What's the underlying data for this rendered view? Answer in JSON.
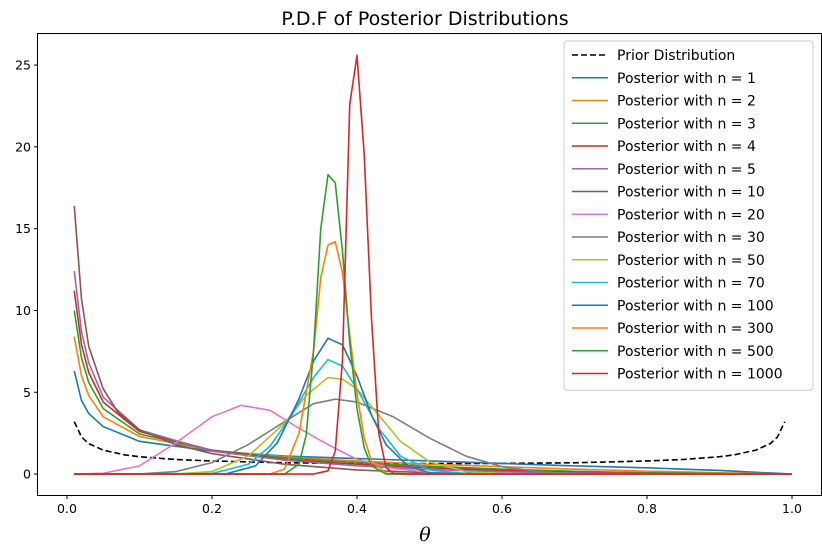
{
  "chart_data": {
    "type": "line",
    "title": "P.D.F of Posterior Distributions",
    "xlabel": "θ",
    "ylabel": "",
    "xlim": [
      -0.04,
      1.04
    ],
    "ylim": [
      -1.28,
      26.9
    ],
    "x_ticks": [
      0.0,
      0.2,
      0.4,
      0.6,
      0.8,
      1.0
    ],
    "x_tick_labels": [
      "0.0",
      "0.2",
      "0.4",
      "0.6",
      "0.8",
      "1.0"
    ],
    "y_ticks": [
      0,
      5,
      10,
      15,
      20,
      25
    ],
    "y_tick_labels": [
      "0",
      "5",
      "10",
      "15",
      "20",
      "25"
    ],
    "grid": false,
    "legend_position": "top-right",
    "series": [
      {
        "name": "Prior Distribution",
        "color": "#000000",
        "dash": true,
        "x_range": [
          0.01,
          0.99
        ],
        "points": [
          [
            0.01,
            3.2
          ],
          [
            0.02,
            2.27
          ],
          [
            0.03,
            1.86
          ],
          [
            0.05,
            1.46
          ],
          [
            0.08,
            1.17
          ],
          [
            0.1,
            1.06
          ],
          [
            0.15,
            0.89
          ],
          [
            0.2,
            0.8
          ],
          [
            0.3,
            0.69
          ],
          [
            0.4,
            0.65
          ],
          [
            0.5,
            0.64
          ],
          [
            0.6,
            0.65
          ],
          [
            0.7,
            0.69
          ],
          [
            0.8,
            0.8
          ],
          [
            0.85,
            0.89
          ],
          [
            0.9,
            1.06
          ],
          [
            0.92,
            1.17
          ],
          [
            0.95,
            1.46
          ],
          [
            0.97,
            1.86
          ],
          [
            0.98,
            2.27
          ],
          [
            0.99,
            3.2
          ]
        ]
      },
      {
        "name": "Posterior with n = 1",
        "color": "#1f77b4",
        "x_range": [
          0.01,
          1.0
        ],
        "points": [
          [
            0.01,
            6.3
          ],
          [
            0.02,
            4.5
          ],
          [
            0.03,
            3.7
          ],
          [
            0.05,
            2.9
          ],
          [
            0.1,
            2.0
          ],
          [
            0.2,
            1.4
          ],
          [
            0.3,
            1.1
          ],
          [
            0.4,
            0.95
          ],
          [
            0.5,
            0.8
          ],
          [
            0.6,
            0.65
          ],
          [
            0.7,
            0.5
          ],
          [
            0.8,
            0.38
          ],
          [
            0.9,
            0.22
          ],
          [
            1.0,
            0.0
          ]
        ]
      },
      {
        "name": "Posterior with n = 2",
        "color": "#ff7f0e",
        "x_range": [
          0.01,
          1.0
        ],
        "points": [
          [
            0.01,
            8.4
          ],
          [
            0.02,
            6.0
          ],
          [
            0.03,
            4.8
          ],
          [
            0.05,
            3.5
          ],
          [
            0.1,
            2.3
          ],
          [
            0.2,
            1.45
          ],
          [
            0.3,
            1.05
          ],
          [
            0.4,
            0.8
          ],
          [
            0.5,
            0.6
          ],
          [
            0.6,
            0.45
          ],
          [
            0.7,
            0.3
          ],
          [
            0.8,
            0.18
          ],
          [
            0.9,
            0.08
          ],
          [
            1.0,
            0.0
          ]
        ]
      },
      {
        "name": "Posterior with n = 3",
        "color": "#2ca02c",
        "x_range": [
          0.01,
          1.0
        ],
        "points": [
          [
            0.01,
            10.0
          ],
          [
            0.02,
            7.1
          ],
          [
            0.03,
            5.6
          ],
          [
            0.05,
            4.0
          ],
          [
            0.1,
            2.45
          ],
          [
            0.2,
            1.45
          ],
          [
            0.3,
            1.0
          ],
          [
            0.4,
            0.7
          ],
          [
            0.5,
            0.48
          ],
          [
            0.6,
            0.3
          ],
          [
            0.7,
            0.17
          ],
          [
            0.8,
            0.08
          ],
          [
            0.9,
            0.03
          ],
          [
            1.0,
            0.0
          ]
        ]
      },
      {
        "name": "Posterior with n = 4",
        "color": "#d62728",
        "x_range": [
          0.01,
          1.0
        ],
        "points": [
          [
            0.01,
            11.2
          ],
          [
            0.02,
            7.9
          ],
          [
            0.03,
            6.2
          ],
          [
            0.05,
            4.4
          ],
          [
            0.1,
            2.6
          ],
          [
            0.2,
            1.45
          ],
          [
            0.3,
            0.9
          ],
          [
            0.4,
            0.6
          ],
          [
            0.5,
            0.38
          ],
          [
            0.6,
            0.22
          ],
          [
            0.7,
            0.1
          ],
          [
            0.8,
            0.04
          ],
          [
            0.9,
            0.01
          ],
          [
            1.0,
            0.0
          ]
        ]
      },
      {
        "name": "Posterior with n = 5",
        "color": "#9467bd",
        "x_range": [
          0.01,
          1.0
        ],
        "points": [
          [
            0.01,
            12.4
          ],
          [
            0.02,
            8.7
          ],
          [
            0.03,
            6.8
          ],
          [
            0.05,
            4.7
          ],
          [
            0.1,
            2.7
          ],
          [
            0.2,
            1.4
          ],
          [
            0.3,
            0.85
          ],
          [
            0.4,
            0.5
          ],
          [
            0.5,
            0.28
          ],
          [
            0.6,
            0.14
          ],
          [
            0.7,
            0.06
          ],
          [
            0.8,
            0.02
          ],
          [
            0.9,
            0.0
          ],
          [
            1.0,
            0.0
          ]
        ]
      },
      {
        "name": "Posterior with n = 10",
        "color": "#8c564b",
        "x_range": [
          0.01,
          1.0
        ],
        "points": [
          [
            0.01,
            16.4
          ],
          [
            0.02,
            10.7
          ],
          [
            0.03,
            7.8
          ],
          [
            0.05,
            5.2
          ],
          [
            0.07,
            3.8
          ],
          [
            0.1,
            2.7
          ],
          [
            0.15,
            1.8
          ],
          [
            0.2,
            1.25
          ],
          [
            0.3,
            0.6
          ],
          [
            0.4,
            0.25
          ],
          [
            0.5,
            0.08
          ],
          [
            0.6,
            0.02
          ],
          [
            0.7,
            0.0
          ],
          [
            1.0,
            0.0
          ]
        ]
      },
      {
        "name": "Posterior with n = 20",
        "color": "#e377c2",
        "x_range": [
          0.01,
          1.0
        ],
        "points": [
          [
            0.01,
            0.0
          ],
          [
            0.05,
            0.05
          ],
          [
            0.1,
            0.5
          ],
          [
            0.15,
            1.9
          ],
          [
            0.2,
            3.5
          ],
          [
            0.24,
            4.2
          ],
          [
            0.28,
            3.9
          ],
          [
            0.32,
            2.8
          ],
          [
            0.36,
            1.8
          ],
          [
            0.4,
            0.9
          ],
          [
            0.45,
            0.35
          ],
          [
            0.5,
            0.1
          ],
          [
            0.55,
            0.02
          ],
          [
            0.6,
            0.0
          ],
          [
            1.0,
            0.0
          ]
        ]
      },
      {
        "name": "Posterior with n = 30",
        "color": "#7f7f7f",
        "x_range": [
          0.01,
          1.0
        ],
        "points": [
          [
            0.01,
            0.0
          ],
          [
            0.1,
            0.01
          ],
          [
            0.15,
            0.15
          ],
          [
            0.2,
            0.7
          ],
          [
            0.25,
            1.8
          ],
          [
            0.3,
            3.2
          ],
          [
            0.34,
            4.3
          ],
          [
            0.37,
            4.58
          ],
          [
            0.4,
            4.4
          ],
          [
            0.45,
            3.5
          ],
          [
            0.5,
            2.2
          ],
          [
            0.55,
            1.1
          ],
          [
            0.6,
            0.45
          ],
          [
            0.65,
            0.15
          ],
          [
            0.7,
            0.03
          ],
          [
            0.75,
            0.0
          ],
          [
            1.0,
            0.0
          ]
        ]
      },
      {
        "name": "Posterior with n = 50",
        "color": "#bcbd22",
        "x_range": [
          0.01,
          1.0
        ],
        "points": [
          [
            0.01,
            0.0
          ],
          [
            0.15,
            0.0
          ],
          [
            0.2,
            0.15
          ],
          [
            0.25,
            1.1
          ],
          [
            0.3,
            3.1
          ],
          [
            0.33,
            4.8
          ],
          [
            0.36,
            5.9
          ],
          [
            0.38,
            5.8
          ],
          [
            0.4,
            5.2
          ],
          [
            0.43,
            3.6
          ],
          [
            0.46,
            2.0
          ],
          [
            0.5,
            0.75
          ],
          [
            0.55,
            0.15
          ],
          [
            0.6,
            0.02
          ],
          [
            0.65,
            0.0
          ],
          [
            1.0,
            0.0
          ]
        ]
      },
      {
        "name": "Posterior with n = 70",
        "color": "#17becf",
        "x_range": [
          0.01,
          1.0
        ],
        "points": [
          [
            0.01,
            0.0
          ],
          [
            0.2,
            0.03
          ],
          [
            0.25,
            0.6
          ],
          [
            0.28,
            1.7
          ],
          [
            0.31,
            3.6
          ],
          [
            0.34,
            5.9
          ],
          [
            0.36,
            7.0
          ],
          [
            0.38,
            6.6
          ],
          [
            0.4,
            5.2
          ],
          [
            0.43,
            2.8
          ],
          [
            0.46,
            1.1
          ],
          [
            0.5,
            0.25
          ],
          [
            0.55,
            0.03
          ],
          [
            0.6,
            0.0
          ],
          [
            1.0,
            0.0
          ]
        ]
      },
      {
        "name": "Posterior with n = 100",
        "color": "#1f77b4",
        "x_range": [
          0.01,
          1.0
        ],
        "points": [
          [
            0.01,
            0.0
          ],
          [
            0.22,
            0.02
          ],
          [
            0.26,
            0.5
          ],
          [
            0.29,
            1.9
          ],
          [
            0.32,
            4.6
          ],
          [
            0.34,
            6.9
          ],
          [
            0.36,
            8.3
          ],
          [
            0.38,
            7.9
          ],
          [
            0.4,
            6.0
          ],
          [
            0.42,
            3.6
          ],
          [
            0.44,
            1.8
          ],
          [
            0.47,
            0.5
          ],
          [
            0.5,
            0.08
          ],
          [
            0.55,
            0.0
          ],
          [
            1.0,
            0.0
          ]
        ]
      },
      {
        "name": "Posterior with n = 300",
        "color": "#ff7f0e",
        "x_range": [
          0.01,
          1.0
        ],
        "points": [
          [
            0.01,
            0.0
          ],
          [
            0.28,
            0.0
          ],
          [
            0.3,
            0.3
          ],
          [
            0.32,
            2.5
          ],
          [
            0.34,
            7.5
          ],
          [
            0.35,
            12.0
          ],
          [
            0.36,
            14.0
          ],
          [
            0.37,
            14.2
          ],
          [
            0.38,
            12.3
          ],
          [
            0.39,
            8.5
          ],
          [
            0.4,
            4.9
          ],
          [
            0.41,
            2.2
          ],
          [
            0.42,
            0.8
          ],
          [
            0.44,
            0.05
          ],
          [
            0.46,
            0.0
          ],
          [
            1.0,
            0.0
          ]
        ]
      },
      {
        "name": "Posterior with n = 500",
        "color": "#2ca02c",
        "x_range": [
          0.01,
          1.0
        ],
        "points": [
          [
            0.01,
            0.0
          ],
          [
            0.3,
            0.0
          ],
          [
            0.32,
            0.6
          ],
          [
            0.33,
            2.4
          ],
          [
            0.34,
            7.5
          ],
          [
            0.35,
            15.0
          ],
          [
            0.36,
            18.3
          ],
          [
            0.37,
            17.8
          ],
          [
            0.38,
            13.6
          ],
          [
            0.39,
            8.0
          ],
          [
            0.4,
            4.0
          ],
          [
            0.41,
            1.6
          ],
          [
            0.42,
            0.5
          ],
          [
            0.44,
            0.0
          ],
          [
            1.0,
            0.0
          ]
        ]
      },
      {
        "name": "Posterior with n = 1000",
        "color": "#d62728",
        "x_range": [
          0.01,
          1.0
        ],
        "points": [
          [
            0.01,
            0.0
          ],
          [
            0.34,
            0.0
          ],
          [
            0.36,
            0.2
          ],
          [
            0.37,
            1.4
          ],
          [
            0.38,
            7.0
          ],
          [
            0.39,
            22.6
          ],
          [
            0.4,
            25.6
          ],
          [
            0.41,
            19.5
          ],
          [
            0.42,
            9.5
          ],
          [
            0.43,
            2.5
          ],
          [
            0.44,
            0.4
          ],
          [
            0.45,
            0.05
          ],
          [
            0.47,
            0.0
          ],
          [
            1.0,
            0.0
          ]
        ]
      }
    ]
  }
}
